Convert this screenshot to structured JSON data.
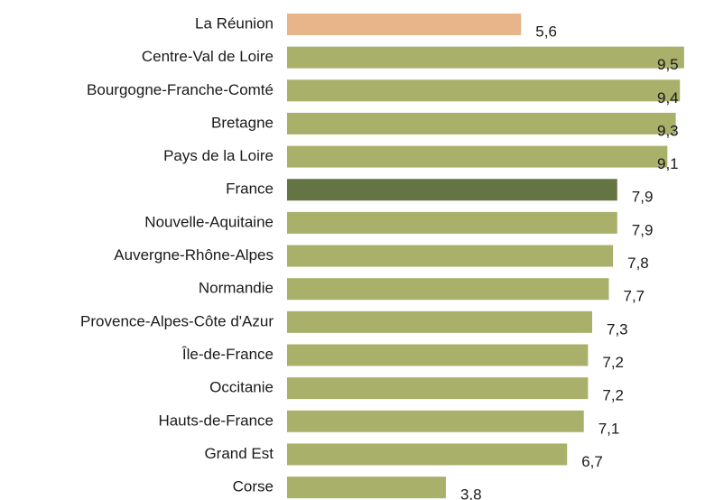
{
  "chart_data": {
    "type": "barh",
    "categories": [
      "La Réunion",
      "Centre-Val de Loire",
      "Bourgogne-Franche-Comté",
      "Bretagne",
      "Pays de la Loire",
      "France",
      "Nouvelle-Aquitaine",
      "Auvergne-Rhône-Alpes",
      "Normandie",
      "Provence-Alpes-Côte d'Azur",
      "Île-de-France",
      "Occitanie",
      "Hauts-de-France",
      "Grand Est",
      "Corse"
    ],
    "values": [
      5.6,
      9.5,
      9.4,
      9.3,
      9.1,
      7.9,
      7.9,
      7.8,
      7.7,
      7.3,
      7.2,
      7.2,
      7.1,
      6.7,
      3.8
    ],
    "value_labels": [
      "5,6",
      "9,5",
      "9,4",
      "9,3",
      "9,1",
      "7,9",
      "7,9",
      "7,8",
      "7,7",
      "7,3",
      "7,2",
      "7,2",
      "7,1",
      "6,7",
      "3,8"
    ],
    "colors": [
      "#e8b48a",
      "#a8b06a",
      "#a8b06a",
      "#a8b06a",
      "#a8b06a",
      "#647543",
      "#a8b06a",
      "#a8b06a",
      "#a8b06a",
      "#a8b06a",
      "#a8b06a",
      "#a8b06a",
      "#a8b06a",
      "#a8b06a",
      "#a8b06a"
    ],
    "xlim": [
      0,
      10
    ]
  }
}
